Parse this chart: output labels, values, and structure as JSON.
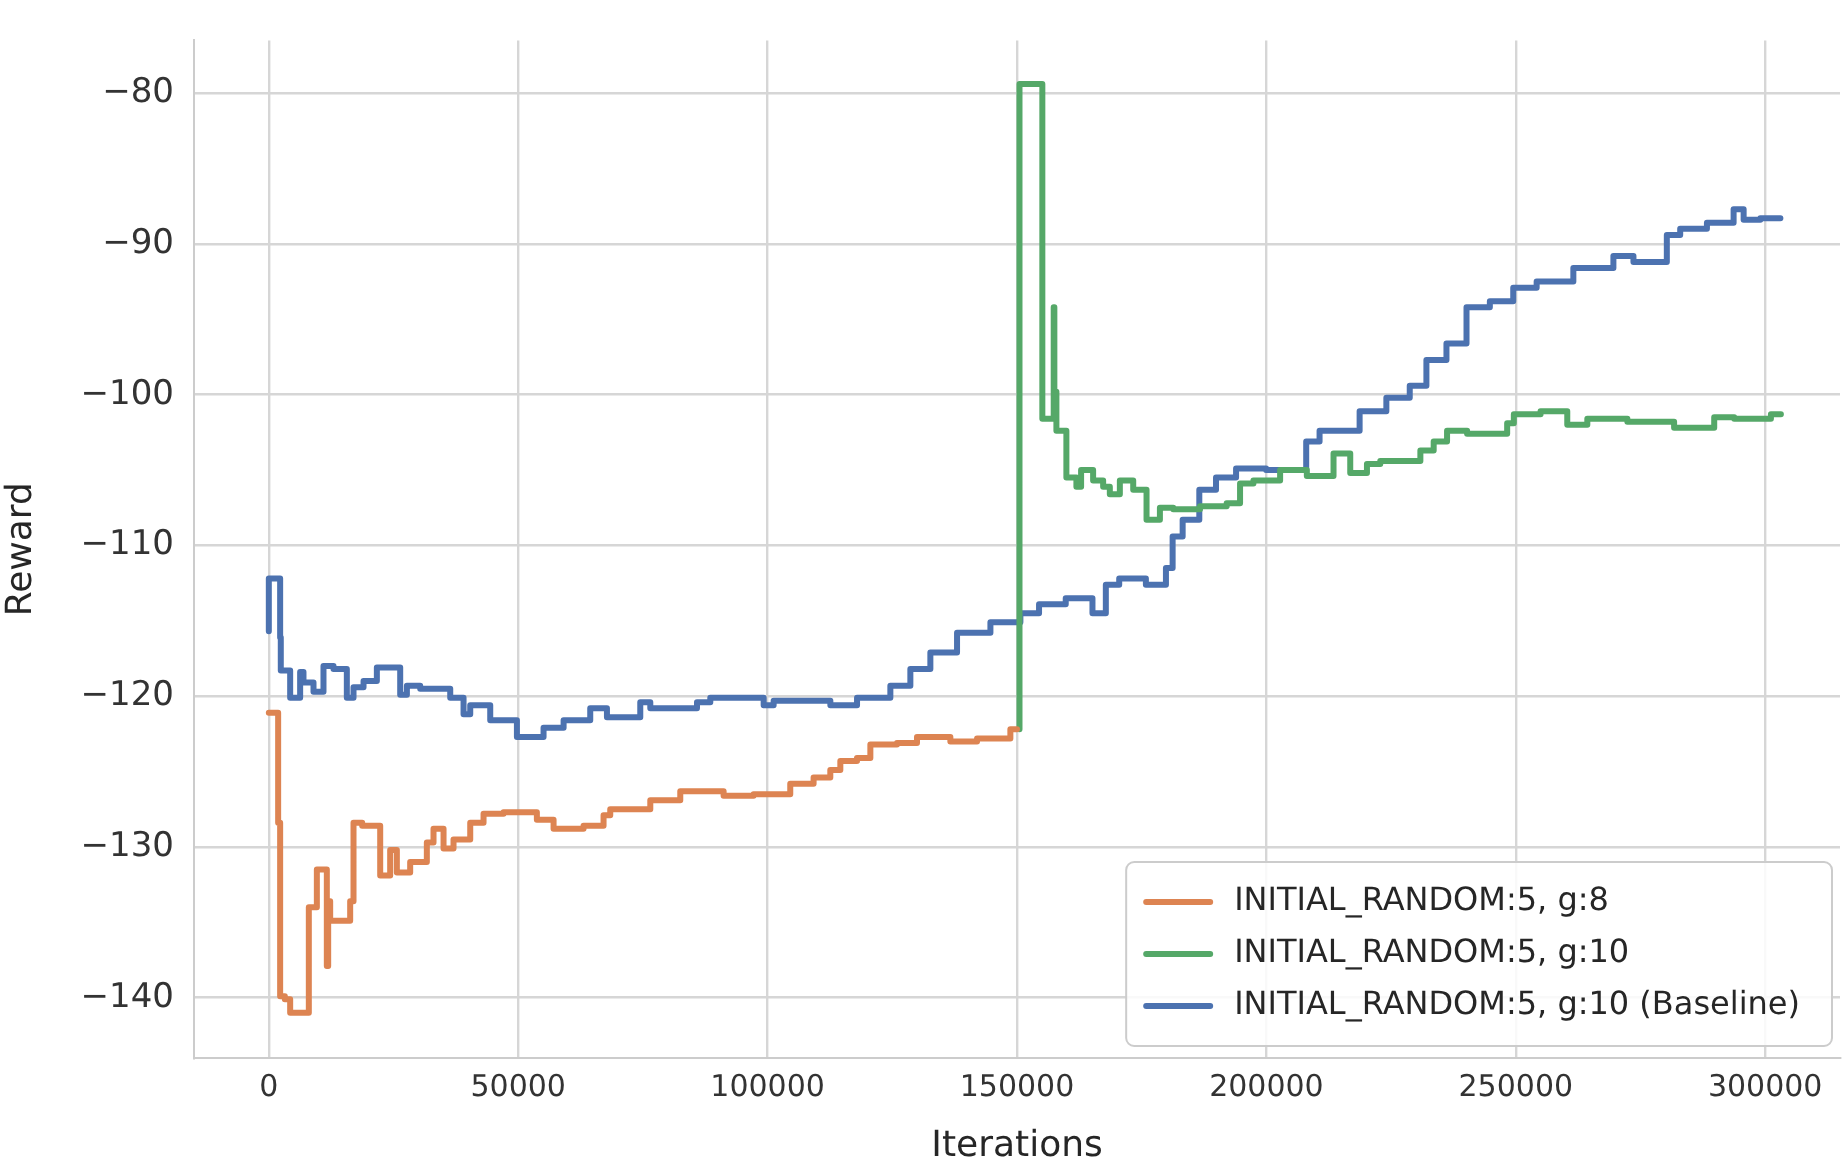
{
  "chart_data": {
    "type": "step",
    "xlabel": "Iterations",
    "ylabel": "Reward",
    "grid": true,
    "legend": "bottom right",
    "marker": "none",
    "line_style": "solid",
    "xlim": [
      -15000,
      315000
    ],
    "xticks": [
      0,
      50000,
      100000,
      150000,
      200000,
      250000,
      300000
    ],
    "ylim": [
      -144,
      -76.5
    ],
    "yticks": [
      {
        "value": -140,
        "label": "−140"
      },
      {
        "value": -130,
        "label": "−130"
      },
      {
        "value": -120,
        "label": "−120"
      },
      {
        "value": -110,
        "label": "−110"
      },
      {
        "value": -100,
        "label": "−100"
      },
      {
        "value": -90,
        "label": "−90"
      },
      {
        "value": -80,
        "label": "−80"
      }
    ],
    "series": [
      {
        "name": "INITIAL_RANDOM:5, g:8",
        "color": "#dd8452",
        "x": [
          0,
          1870,
          2270,
          3210,
          4280,
          5620,
          8020,
          8290,
          9630,
          10030,
          11630,
          11900,
          12300,
          16310,
          16980,
          18720,
          22330,
          22990,
          24330,
          25670,
          28340,
          31680,
          33020,
          35030,
          37030,
          40380,
          43050,
          47060,
          53740,
          57090,
          63100,
          67110,
          68450,
          76480,
          82490,
          91180,
          97190,
          104540,
          109220,
          112570,
          114580,
          117920,
          120600,
          125940,
          129950,
          136640,
          141990,
          148670,
          150000
        ],
        "values": [
          -121.1,
          -121.1,
          -128.4,
          -139.9,
          -140.1,
          -141,
          -141,
          -134,
          -134,
          -131.5,
          -131.5,
          -137.9,
          -133.6,
          -134.9,
          -133.6,
          -128.4,
          -128.6,
          -131.9,
          -131.9,
          -130.2,
          -131.7,
          -131,
          -129.7,
          -128.8,
          -130.1,
          -129.5,
          -128.4,
          -127.8,
          -127.7,
          -128.2,
          -128.8,
          -128.6,
          -127.9,
          -127.5,
          -126.9,
          -126.3,
          -126.6,
          -126.5,
          -125.8,
          -125.4,
          -124.9,
          -124.3,
          -124.1,
          -123.2,
          -123.1,
          -122.7,
          -123,
          -122.8,
          -122.2
        ]
      },
      {
        "name": "INITIAL_RANDOM:5, g:10",
        "color": "#55a868",
        "x": [
          150500,
          150670,
          155080,
          155220,
          157360,
          157490,
          157900,
          159900,
          161910,
          162850,
          165260,
          167270,
          168610,
          170620,
          173300,
          175970,
          178650,
          181330,
          186690,
          192040,
          194720,
          197400,
          202750,
          208110,
          210790,
          213460,
          216810,
          220160,
          222830,
          230870,
          233540,
          236220,
          240240,
          248270,
          249610,
          254970,
          260320,
          264340,
          272370,
          281740,
          289780,
          293790,
          301150,
          303150
        ],
        "values": [
          -122.2,
          -79.4,
          -79.4,
          -101.6,
          -101.6,
          -94.2,
          -99.8,
          -102.4,
          -105.5,
          -106.1,
          -105,
          -105.7,
          -106.1,
          -106.6,
          -105.7,
          -106.3,
          -108.3,
          -107.5,
          -107.6,
          -107.4,
          -107.2,
          -105.9,
          -105.7,
          -105,
          -105.4,
          -105.4,
          -103.9,
          -105.2,
          -104.6,
          -104.4,
          -103.7,
          -103.1,
          -102.4,
          -102.6,
          -101.9,
          -101.3,
          -101.1,
          -102,
          -101.6,
          -101.8,
          -102.2,
          -101.5,
          -101.6,
          -101.3
        ]
      },
      {
        "name": "INITIAL_RANDOM:5, g:10 (Baseline)",
        "color": "#4c72b0",
        "x": [
          0,
          270,
          2270,
          2400,
          4280,
          6280,
          6950,
          8960,
          10960,
          12970,
          15640,
          16980,
          18990,
          21660,
          23670,
          26340,
          27680,
          30350,
          36370,
          39040,
          40380,
          44390,
          49740,
          55080,
          59100,
          64440,
          67790,
          74470,
          76480,
          85840,
          88510,
          99210,
          101210,
          112580,
          117930,
          124610,
          128620,
          132630,
          137980,
          144670,
          150680,
          154420,
          159770,
          165130,
          167810,
          170490,
          175840,
          179860,
          181200,
          183210,
          186550,
          189900,
          193920,
          199940,
          207980,
          210660,
          218690,
          224050,
          228740,
          232080,
          236100,
          240120,
          244800,
          249490,
          254180,
          261540,
          269570,
          273590,
          280280,
          282960,
          288320,
          293670,
          295680,
          299030,
          303050
        ],
        "values": [
          -115.7,
          -112.2,
          -112.2,
          -116.1,
          -118.3,
          -120.1,
          -118.4,
          -119.1,
          -119.7,
          -118,
          -118.2,
          -120.1,
          -119.4,
          -119,
          -118.1,
          -118.1,
          -119.9,
          -119.3,
          -119.5,
          -120.1,
          -121.2,
          -120.6,
          -121.6,
          -122.7,
          -122.1,
          -121.6,
          -120.8,
          -121.4,
          -120.4,
          -120.8,
          -120.4,
          -120.1,
          -120.6,
          -120.3,
          -120.6,
          -120.1,
          -119.3,
          -118.2,
          -117.1,
          -115.8,
          -115.1,
          -114.5,
          -113.9,
          -113.5,
          -114.5,
          -112.6,
          -112.2,
          -112.6,
          -111.5,
          -109.4,
          -108.3,
          -106.3,
          -105.5,
          -104.9,
          -105,
          -103.1,
          -102.4,
          -101.1,
          -100.2,
          -99.4,
          -97.7,
          -96.6,
          -94.2,
          -93.8,
          -92.9,
          -92.5,
          -91.6,
          -90.8,
          -91.2,
          -89.4,
          -89,
          -88.6,
          -87.7,
          -88.4,
          -88.3
        ]
      }
    ]
  }
}
